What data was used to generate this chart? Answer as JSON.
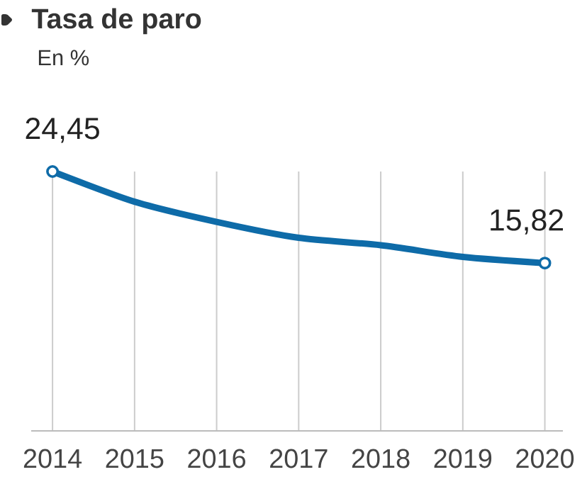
{
  "chart_data": {
    "type": "line",
    "title": "Tasa de paro",
    "subtitle": "En %",
    "categories": [
      "2014",
      "2015",
      "2016",
      "2017",
      "2018",
      "2019",
      "2020"
    ],
    "series": [
      {
        "color": "#0e6ba8",
        "values": [
          24.45,
          21.6,
          19.7,
          18.2,
          17.5,
          16.4,
          15.82
        ]
      },
      {
        "type": "scatter",
        "color": "#0e6ba8",
        "marker": "circle",
        "values": [
          24.45,
          null,
          null,
          null,
          null,
          null,
          15.82
        ],
        "value_labels": [
          "24,45",
          null,
          null,
          null,
          null,
          null,
          "15,82"
        ]
      }
    ],
    "grid": "x",
    "line_style": "solid"
  }
}
